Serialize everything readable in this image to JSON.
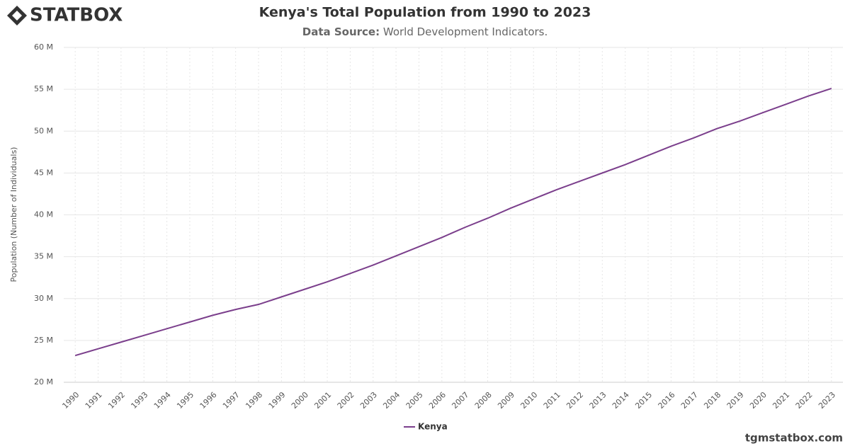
{
  "brand": "STATBOX",
  "footer": "tgmstatbox.com",
  "chart_data": {
    "type": "line",
    "title": "Kenya's Total Population from 1990 to 2023",
    "subtitle_label": "Data Source:",
    "subtitle": "World Development Indicators.",
    "y_label": "Population (Number of Individuals)",
    "x": [
      1990,
      1991,
      1992,
      1993,
      1994,
      1995,
      1996,
      1997,
      1998,
      1999,
      2000,
      2001,
      2002,
      2003,
      2004,
      2005,
      2006,
      2007,
      2008,
      2009,
      2010,
      2011,
      2012,
      2013,
      2014,
      2015,
      2016,
      2017,
      2018,
      2019,
      2020,
      2021,
      2022,
      2023
    ],
    "series": [
      {
        "name": "Kenya",
        "color": "#7b3f8c",
        "values": [
          23200000,
          24000000,
          24800000,
          25600000,
          26400000,
          27200000,
          28000000,
          28700000,
          29300000,
          30200000,
          31100000,
          32000000,
          33000000,
          34000000,
          35100000,
          36200000,
          37300000,
          38500000,
          39600000,
          40800000,
          41900000,
          43000000,
          44000000,
          45000000,
          46000000,
          47100000,
          48200000,
          49200000,
          50300000,
          51200000,
          52200000,
          53200000,
          54200000,
          55100000
        ]
      }
    ],
    "ylim": [
      20000000,
      60000000
    ],
    "yticks": [
      {
        "value": 20000000,
        "label": "20 M"
      },
      {
        "value": 25000000,
        "label": "25 M"
      },
      {
        "value": 30000000,
        "label": "30 M"
      },
      {
        "value": 35000000,
        "label": "35 M"
      },
      {
        "value": 40000000,
        "label": "40 M"
      },
      {
        "value": 45000000,
        "label": "45 M"
      },
      {
        "value": 50000000,
        "label": "50 M"
      },
      {
        "value": 55000000,
        "label": "55 M"
      },
      {
        "value": 60000000,
        "label": "60 M"
      }
    ],
    "grid": true,
    "legend": "bottom"
  }
}
